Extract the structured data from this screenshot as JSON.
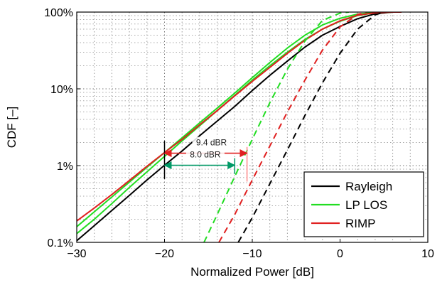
{
  "chart_data": {
    "type": "line",
    "xlabel": "Normalized Power [dB]",
    "ylabel": "CDF [–]",
    "xlim": [
      -30,
      10
    ],
    "ylim": [
      0.001,
      1
    ],
    "yscale": "log",
    "grid": true,
    "x_ticks": [
      {
        "value": -30,
        "label": "−30"
      },
      {
        "value": -20,
        "label": "−20"
      },
      {
        "value": -10,
        "label": "−10"
      },
      {
        "value": 0,
        "label": "0"
      },
      {
        "value": 10,
        "label": "10"
      }
    ],
    "y_ticks": [
      {
        "value": 0.001,
        "label": "0.1%"
      },
      {
        "value": 0.01,
        "label": "1%"
      },
      {
        "value": 0.1,
        "label": "10%"
      },
      {
        "value": 1,
        "label": "100%"
      }
    ],
    "legend": {
      "placement": "bottom-right",
      "entries": [
        {
          "label": "Rayleigh",
          "color": "#000000"
        },
        {
          "label": "LP LOS",
          "color": "#22dd22"
        },
        {
          "label": "RIMP",
          "color": "#e02020"
        }
      ]
    },
    "series": [
      {
        "color": "#000000",
        "dash": "solid",
        "points": [
          [
            -30,
            0.00105
          ],
          [
            -28,
            0.00165
          ],
          [
            -26,
            0.0026
          ],
          [
            -24,
            0.0041
          ],
          [
            -22,
            0.0065
          ],
          [
            -20,
            0.0101
          ],
          [
            -18,
            0.0155
          ],
          [
            -16,
            0.0245
          ],
          [
            -14,
            0.038
          ],
          [
            -12,
            0.059
          ],
          [
            -10,
            0.095
          ],
          [
            -8,
            0.15
          ],
          [
            -6,
            0.23
          ],
          [
            -4,
            0.35
          ],
          [
            -2,
            0.5
          ],
          [
            0,
            0.65
          ],
          [
            2,
            0.82
          ],
          [
            4,
            0.95
          ],
          [
            6,
            1.0
          ],
          [
            7,
            1.0
          ]
        ]
      },
      {
        "color": "#22dd22",
        "dash": "solid",
        "points": [
          [
            -30,
            0.0016
          ],
          [
            -28,
            0.0025
          ],
          [
            -26,
            0.0039
          ],
          [
            -24,
            0.0061
          ],
          [
            -22,
            0.0095
          ],
          [
            -20,
            0.0148
          ],
          [
            -18,
            0.023
          ],
          [
            -16,
            0.036
          ],
          [
            -14,
            0.056
          ],
          [
            -12,
            0.088
          ],
          [
            -10,
            0.14
          ],
          [
            -8,
            0.22
          ],
          [
            -6,
            0.34
          ],
          [
            -4,
            0.5
          ],
          [
            -2,
            0.68
          ],
          [
            0,
            0.83
          ],
          [
            2,
            0.94
          ],
          [
            4,
            0.99
          ],
          [
            6,
            1.0
          ],
          [
            7,
            1.0
          ]
        ]
      },
      {
        "color": "#22dd22",
        "dash": "solid",
        "points": [
          [
            -30,
            0.0013
          ],
          [
            -28,
            0.002
          ],
          [
            -26,
            0.0032
          ],
          [
            -24,
            0.0052
          ],
          [
            -22,
            0.0083
          ],
          [
            -20,
            0.0132
          ],
          [
            -18,
            0.021
          ],
          [
            -16,
            0.033
          ],
          [
            -14,
            0.052
          ],
          [
            -12,
            0.082
          ],
          [
            -10,
            0.13
          ],
          [
            -8,
            0.2
          ],
          [
            -6,
            0.3
          ],
          [
            -4,
            0.44
          ],
          [
            -2,
            0.6
          ],
          [
            0,
            0.76
          ],
          [
            2,
            0.9
          ],
          [
            4,
            0.98
          ],
          [
            6,
            1.0
          ],
          [
            7,
            1.0
          ]
        ]
      },
      {
        "color": "#e02020",
        "dash": "solid",
        "points": [
          [
            -30,
            0.0019
          ],
          [
            -28,
            0.0028
          ],
          [
            -26,
            0.0042
          ],
          [
            -24,
            0.0064
          ],
          [
            -22,
            0.0098
          ],
          [
            -20,
            0.0148
          ],
          [
            -18,
            0.022
          ],
          [
            -16,
            0.034
          ],
          [
            -14,
            0.052
          ],
          [
            -12,
            0.081
          ],
          [
            -10,
            0.125
          ],
          [
            -8,
            0.19
          ],
          [
            -6,
            0.29
          ],
          [
            -4,
            0.43
          ],
          [
            -2,
            0.6
          ],
          [
            0,
            0.77
          ],
          [
            2,
            0.91
          ],
          [
            4,
            0.98
          ],
          [
            6,
            1.0
          ],
          [
            7,
            1.0
          ]
        ]
      },
      {
        "color": "#000000",
        "dash": "dashed",
        "points": [
          [
            -11.6,
            0.001
          ],
          [
            -10,
            0.0021
          ],
          [
            -8,
            0.0058
          ],
          [
            -6,
            0.016
          ],
          [
            -4,
            0.045
          ],
          [
            -2,
            0.12
          ],
          [
            0,
            0.29
          ],
          [
            2,
            0.6
          ],
          [
            4,
            0.92
          ],
          [
            5,
            1.0
          ]
        ]
      },
      {
        "color": "#e02020",
        "dash": "dashed",
        "points": [
          [
            -13.8,
            0.001
          ],
          [
            -12,
            0.0023
          ],
          [
            -10,
            0.0065
          ],
          [
            -8,
            0.018
          ],
          [
            -6,
            0.05
          ],
          [
            -4,
            0.13
          ],
          [
            -2,
            0.32
          ],
          [
            0,
            0.64
          ],
          [
            2,
            0.93
          ],
          [
            3,
            1.0
          ]
        ]
      },
      {
        "color": "#22dd22",
        "dash": "dashed",
        "points": [
          [
            -15.5,
            0.001
          ],
          [
            -14,
            0.0023
          ],
          [
            -12,
            0.0072
          ],
          [
            -10,
            0.022
          ],
          [
            -8,
            0.066
          ],
          [
            -6,
            0.18
          ],
          [
            -4,
            0.42
          ],
          [
            -2,
            0.78
          ],
          [
            0,
            0.97
          ],
          [
            1,
            1.0
          ]
        ]
      }
    ],
    "annotations": [
      {
        "label": "9.4 dBR",
        "color": "#e02020",
        "x_from": -20,
        "x_to": -10.6,
        "y": 0.0145
      },
      {
        "label": "8.0 dBR",
        "color": "#009966",
        "x_from": -20,
        "x_to": -12,
        "y": 0.0101
      }
    ]
  }
}
